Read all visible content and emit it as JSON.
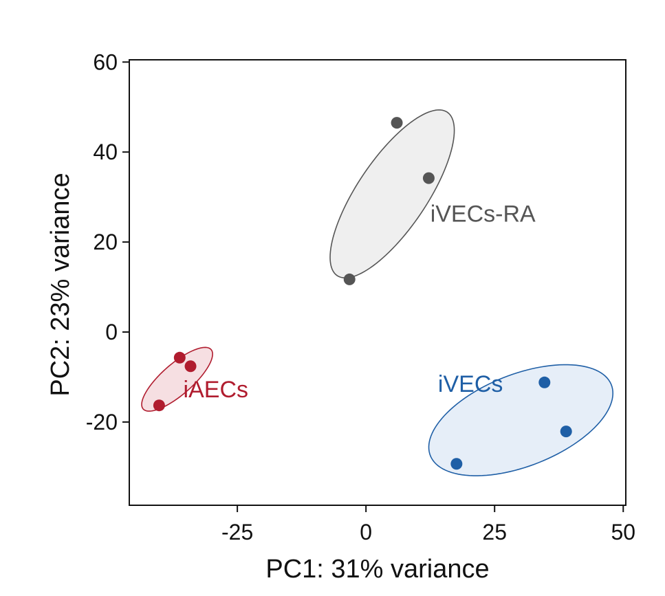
{
  "chart_data": {
    "type": "scatter",
    "title": "",
    "xlabel": "PC1: 31% variance",
    "ylabel": "PC2: 23% variance",
    "xlim": [
      -46,
      50.5
    ],
    "ylim": [
      -38.5,
      60.5
    ],
    "xticks": [
      -25,
      0,
      25,
      50
    ],
    "yticks": [
      -20,
      0,
      20,
      40,
      60
    ],
    "xtick_labels": [
      "-25",
      "0",
      "25",
      "50"
    ],
    "ytick_labels": [
      "-20",
      "0",
      "20",
      "40",
      "60"
    ],
    "grid": false,
    "series": [
      {
        "name": "iAECs",
        "color": "#b01c2e",
        "fill": "#f6dfe2",
        "points": [
          [
            -36.2,
            -5.7
          ],
          [
            -34.1,
            -7.6
          ],
          [
            -40.2,
            -16.3
          ]
        ],
        "ellipse": {
          "cx": -36.7,
          "cy": -10.5,
          "rx": 9.35,
          "ry": 3.2,
          "angle_deg": 46
        },
        "label_pos": [
          -35.5,
          -14.5
        ]
      },
      {
        "name": "iVECs-RA",
        "color": "#555555",
        "fill": "#efefef",
        "points": [
          [
            6,
            46.5
          ],
          [
            12.2,
            34.2
          ],
          [
            -3.2,
            11.7
          ]
        ],
        "ellipse": {
          "cx": 5.1,
          "cy": 30.7,
          "rx": 21.1,
          "ry": 7.0,
          "angle_deg": 60.4
        },
        "label_pos": [
          12.5,
          24.5
        ]
      },
      {
        "name": "iVECs",
        "color": "#1f5fa6",
        "fill": "#e6eef8",
        "points": [
          [
            34.7,
            -11.2
          ],
          [
            38.9,
            -22.1
          ],
          [
            17.6,
            -29.3
          ]
        ],
        "ellipse": {
          "cx": 30.1,
          "cy": -19.6,
          "rx": 19.3,
          "ry": 10.0,
          "angle_deg": 26
        },
        "label_pos": [
          14,
          -13.3
        ]
      }
    ]
  }
}
